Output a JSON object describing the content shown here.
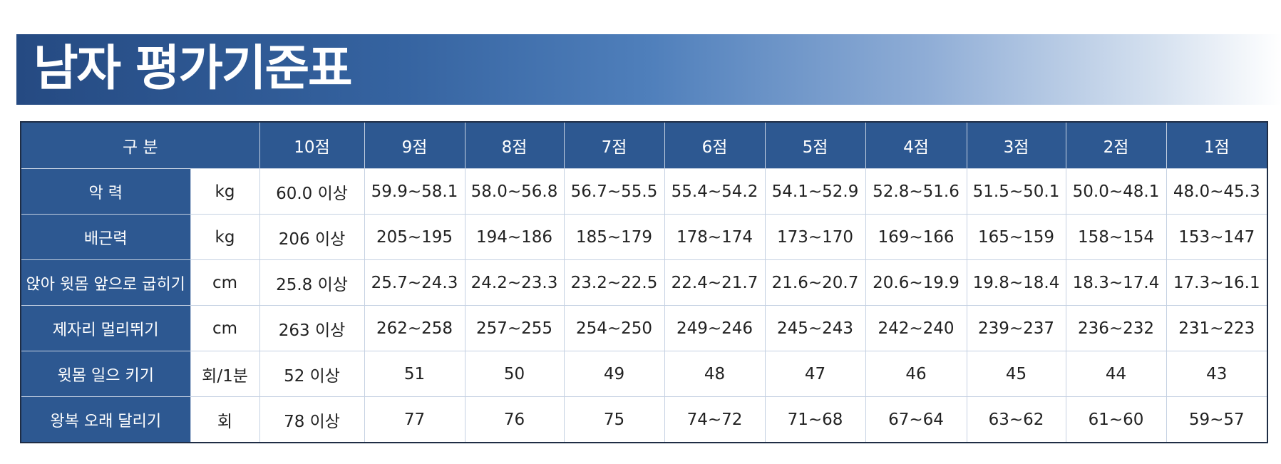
{
  "title": "남자 평가기준표",
  "table": {
    "header": [
      "구 분",
      "10점",
      "9점",
      "8점",
      "7점",
      "6점",
      "5점",
      "4점",
      "3점",
      "2점",
      "1점"
    ],
    "rows": [
      [
        "악 력",
        "kg",
        "60.0 이상",
        "59.9~58.1",
        "58.0~56.8",
        "56.7~55.5",
        "55.4~54.2",
        "54.1~52.9",
        "52.8~51.6",
        "51.5~50.1",
        "50.0~48.1",
        "48.0~45.3"
      ],
      [
        "배근력",
        "kg",
        "206 이상",
        "205~195",
        "194~186",
        "185~179",
        "178~174",
        "173~170",
        "169~166",
        "165~159",
        "158~154",
        "153~147"
      ],
      [
        "앉아 윗몸 앞으로 굽히기",
        "cm",
        "25.8 이상",
        "25.7~24.3",
        "24.2~23.3",
        "23.2~22.5",
        "22.4~21.7",
        "21.6~20.7",
        "20.6~19.9",
        "19.8~18.4",
        "18.3~17.4",
        "17.3~16.1"
      ],
      [
        "제자리 멀리뛰기",
        "cm",
        "263 이상",
        "262~258",
        "257~255",
        "254~250",
        "249~246",
        "245~243",
        "242~240",
        "239~237",
        "236~232",
        "231~223"
      ],
      [
        "윗몸 일으 키기",
        "회/1분",
        "52 이상",
        "51",
        "50",
        "49",
        "48",
        "47",
        "46",
        "45",
        "44",
        "43"
      ],
      [
        "왕복 오래 달리기",
        "회",
        "78 이상",
        "77",
        "76",
        "75",
        "74~72",
        "71~68",
        "67~64",
        "63~62",
        "61~60",
        "59~57"
      ]
    ]
  }
}
